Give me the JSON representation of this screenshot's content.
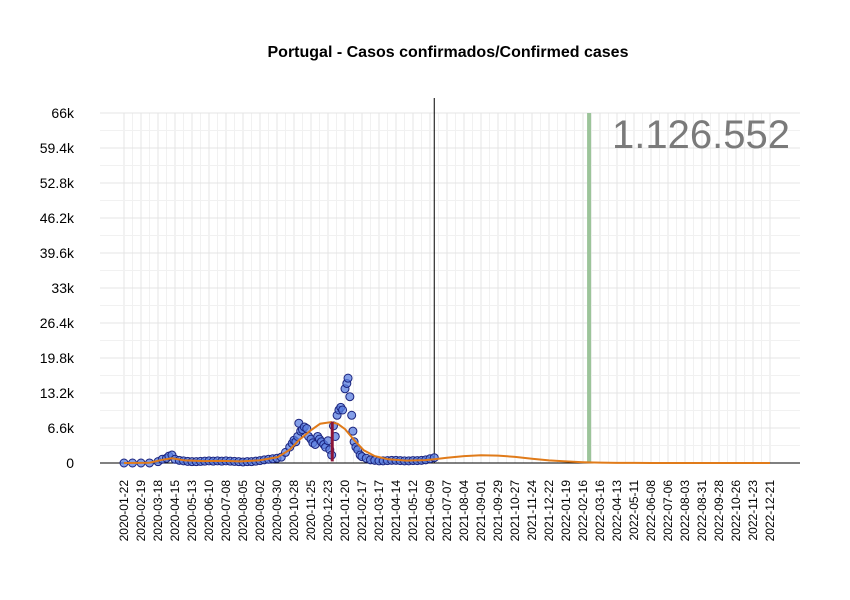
{
  "chart_data": {
    "type": "scatter",
    "title": "Portugal - Casos confirmados/Confirmed cases",
    "total_label": "1.126.552",
    "ylim": [
      0,
      66000
    ],
    "y_ticks": [
      "66k",
      "59.4k",
      "52.8k",
      "46.2k",
      "39.6k",
      "33k",
      "26.4k",
      "19.8k",
      "13.2k",
      "6.6k",
      "0"
    ],
    "x_ticks": [
      "2020-01-22",
      "2020-02-19",
      "2020-03-18",
      "2020-04-15",
      "2020-05-13",
      "2020-06-10",
      "2020-07-08",
      "2020-08-05",
      "2020-09-02",
      "2020-09-30",
      "2020-10-28",
      "2020-11-25",
      "2020-12-23",
      "2021-01-20",
      "2021-02-17",
      "2021-03-17",
      "2021-04-14",
      "2021-05-12",
      "2021-06-09",
      "2021-07-07",
      "2021-08-04",
      "2021-09-01",
      "2021-09-29",
      "2021-10-27",
      "2021-11-24",
      "2021-12-22",
      "2022-01-19",
      "2022-02-16",
      "2022-03-16",
      "2022-04-13",
      "2022-05-11",
      "2022-06-08",
      "2022-07-06",
      "2022-08-03",
      "2022-08-31",
      "2022-09-28",
      "2022-10-26",
      "2022-11-23",
      "2022-12-21"
    ],
    "data_end_date": "2021-06-16",
    "marker_date": "2022-02-26",
    "peak_bar": {
      "date": "2020-12-30",
      "range": [
        300,
        7800
      ]
    },
    "series": [
      {
        "type": "scatter",
        "points": [
          [
            "2020-01-22",
            0
          ],
          [
            "2020-02-05",
            0
          ],
          [
            "2020-02-19",
            0
          ],
          [
            "2020-03-04",
            10
          ],
          [
            "2020-03-18",
            250
          ],
          [
            "2020-03-25",
            700
          ],
          [
            "2020-04-01",
            900
          ],
          [
            "2020-04-05",
            1300
          ],
          [
            "2020-04-10",
            1500
          ],
          [
            "2020-04-15",
            700
          ],
          [
            "2020-04-22",
            500
          ],
          [
            "2020-04-29",
            400
          ],
          [
            "2020-05-06",
            300
          ],
          [
            "2020-05-13",
            250
          ],
          [
            "2020-05-20",
            250
          ],
          [
            "2020-05-27",
            300
          ],
          [
            "2020-06-03",
            350
          ],
          [
            "2020-06-10",
            400
          ],
          [
            "2020-06-17",
            350
          ],
          [
            "2020-06-24",
            400
          ],
          [
            "2020-07-01",
            350
          ],
          [
            "2020-07-08",
            400
          ],
          [
            "2020-07-15",
            350
          ],
          [
            "2020-07-22",
            300
          ],
          [
            "2020-07-29",
            250
          ],
          [
            "2020-08-05",
            200
          ],
          [
            "2020-08-12",
            250
          ],
          [
            "2020-08-19",
            250
          ],
          [
            "2020-08-26",
            350
          ],
          [
            "2020-09-02",
            450
          ],
          [
            "2020-09-09",
            600
          ],
          [
            "2020-09-16",
            700
          ],
          [
            "2020-09-23",
            800
          ],
          [
            "2020-09-30",
            900
          ],
          [
            "2020-10-07",
            1100
          ],
          [
            "2020-10-14",
            2000
          ],
          [
            "2020-10-21",
            3000
          ],
          [
            "2020-10-25",
            3700
          ],
          [
            "2020-10-28",
            4300
          ],
          [
            "2020-10-31",
            4000
          ],
          [
            "2020-11-03",
            5000
          ],
          [
            "2020-11-05",
            7500
          ],
          [
            "2020-11-08",
            6000
          ],
          [
            "2020-11-11",
            6300
          ],
          [
            "2020-11-14",
            6800
          ],
          [
            "2020-11-18",
            6500
          ],
          [
            "2020-11-21",
            5000
          ],
          [
            "2020-11-25",
            4500
          ],
          [
            "2020-11-28",
            3800
          ],
          [
            "2020-12-02",
            3500
          ],
          [
            "2020-12-06",
            5000
          ],
          [
            "2020-12-09",
            4500
          ],
          [
            "2020-12-12",
            4000
          ],
          [
            "2020-12-16",
            3500
          ],
          [
            "2020-12-19",
            3000
          ],
          [
            "2020-12-23",
            4200
          ],
          [
            "2020-12-26",
            2500
          ],
          [
            "2020-12-29",
            1500
          ],
          [
            "2021-01-01",
            7000
          ],
          [
            "2021-01-04",
            5000
          ],
          [
            "2021-01-07",
            9000
          ],
          [
            "2021-01-10",
            10000
          ],
          [
            "2021-01-13",
            10500
          ],
          [
            "2021-01-16",
            10000
          ],
          [
            "2021-01-20",
            14000
          ],
          [
            "2021-01-23",
            15000
          ],
          [
            "2021-01-25",
            16000
          ],
          [
            "2021-01-28",
            12500
          ],
          [
            "2021-01-31",
            9000
          ],
          [
            "2021-02-02",
            6000
          ],
          [
            "2021-02-04",
            4000
          ],
          [
            "2021-02-07",
            3000
          ],
          [
            "2021-02-10",
            2500
          ],
          [
            "2021-02-14",
            1500
          ],
          [
            "2021-02-17",
            1200
          ],
          [
            "2021-02-24",
            900
          ],
          [
            "2021-03-03",
            600
          ],
          [
            "2021-03-10",
            500
          ],
          [
            "2021-03-17",
            400
          ],
          [
            "2021-03-24",
            400
          ],
          [
            "2021-03-31",
            450
          ],
          [
            "2021-04-07",
            500
          ],
          [
            "2021-04-14",
            500
          ],
          [
            "2021-04-21",
            450
          ],
          [
            "2021-04-28",
            400
          ],
          [
            "2021-05-05",
            400
          ],
          [
            "2021-05-12",
            450
          ],
          [
            "2021-05-19",
            450
          ],
          [
            "2021-05-26",
            500
          ],
          [
            "2021-06-02",
            600
          ],
          [
            "2021-06-09",
            800
          ],
          [
            "2021-06-16",
            1000
          ]
        ]
      },
      {
        "type": "line",
        "points": [
          [
            "2020-01-22",
            0
          ],
          [
            "2020-03-04",
            50
          ],
          [
            "2020-03-25",
            600
          ],
          [
            "2020-04-10",
            900
          ],
          [
            "2020-05-01",
            500
          ],
          [
            "2020-06-01",
            350
          ],
          [
            "2020-07-01",
            400
          ],
          [
            "2020-08-01",
            300
          ],
          [
            "2020-09-01",
            500
          ],
          [
            "2020-10-01",
            1100
          ],
          [
            "2020-10-21",
            2500
          ],
          [
            "2020-11-05",
            4300
          ],
          [
            "2020-11-25",
            6200
          ],
          [
            "2020-12-10",
            7400
          ],
          [
            "2020-12-28",
            7700
          ],
          [
            "2021-01-08",
            7400
          ],
          [
            "2021-01-20",
            6400
          ],
          [
            "2021-02-05",
            4200
          ],
          [
            "2021-02-20",
            2400
          ],
          [
            "2021-03-10",
            1300
          ],
          [
            "2021-04-01",
            700
          ],
          [
            "2021-05-01",
            450
          ],
          [
            "2021-06-01",
            550
          ],
          [
            "2021-06-16",
            700
          ],
          [
            "2021-07-07",
            1000
          ],
          [
            "2021-08-04",
            1300
          ],
          [
            "2021-09-01",
            1450
          ],
          [
            "2021-09-29",
            1400
          ],
          [
            "2021-10-27",
            1150
          ],
          [
            "2021-11-24",
            800
          ],
          [
            "2021-12-22",
            500
          ],
          [
            "2022-01-19",
            300
          ],
          [
            "2022-02-16",
            150
          ],
          [
            "2022-03-16",
            60
          ],
          [
            "2022-04-13",
            20
          ],
          [
            "2022-06-08",
            5
          ],
          [
            "2022-12-21",
            0
          ]
        ]
      }
    ]
  }
}
